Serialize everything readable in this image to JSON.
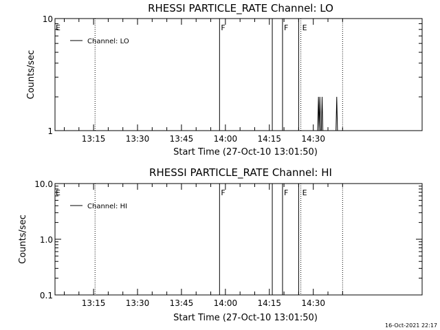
{
  "footer": {
    "timestamp": "16-Oct-2021 22:17"
  },
  "chart_data": [
    {
      "type": "line",
      "title": "RHESSI PARTICLE_RATE Channel: LO",
      "xlabel": "Start Time (27-Oct-10 13:01:50)",
      "ylabel": "Counts/sec",
      "yscale": "log",
      "ylim": [
        1,
        10
      ],
      "ytick_labels": [
        "1",
        "10"
      ],
      "xtick_labels": [
        "13:15",
        "13:30",
        "13:45",
        "14:00",
        "14:15",
        "14:30"
      ],
      "legend": {
        "label": "Channel: LO",
        "placement": "top-left"
      },
      "series": [
        {
          "name": "Channel: LO",
          "x": [
            "14:31:30",
            "14:31:45",
            "14:32:00",
            "14:32:15",
            "14:32:30",
            "14:32:45",
            "14:33:00",
            "14:33:15",
            "14:37:45",
            "14:38:00",
            "14:38:15"
          ],
          "values": [
            1,
            2,
            1,
            2,
            1,
            1,
            2,
            1,
            1,
            2,
            1
          ]
        }
      ],
      "event_lines": [
        {
          "time": "13:58:00",
          "style": "solid",
          "label": "F"
        },
        {
          "time": "14:16:00",
          "style": "solid",
          "label": ""
        },
        {
          "time": "14:19:30",
          "style": "solid",
          "label": "F"
        },
        {
          "time": "14:25:00",
          "style": "solid",
          "label": ""
        },
        {
          "time": "13:15:30",
          "style": "dotted",
          "label": ""
        },
        {
          "time": "14:25:45",
          "style": "dotted",
          "label": "E"
        },
        {
          "time": "14:40:00",
          "style": "dotted",
          "label": ""
        }
      ],
      "edge_label": "E"
    },
    {
      "type": "line",
      "title": "RHESSI PARTICLE_RATE Channel: HI",
      "xlabel": "Start Time (27-Oct-10 13:01:50)",
      "ylabel": "Counts/sec",
      "yscale": "log",
      "ylim": [
        0.1,
        10
      ],
      "ytick_labels": [
        "0.1",
        "1.0",
        "10.0"
      ],
      "xtick_labels": [
        "13:15",
        "13:30",
        "13:45",
        "14:00",
        "14:15",
        "14:30"
      ],
      "legend": {
        "label": "Channel: HI",
        "placement": "top-left"
      },
      "series": [
        {
          "name": "Channel: HI",
          "x": [],
          "values": []
        }
      ],
      "event_lines": [
        {
          "time": "13:58:00",
          "style": "solid",
          "label": "F"
        },
        {
          "time": "14:16:00",
          "style": "solid",
          "label": ""
        },
        {
          "time": "14:19:30",
          "style": "solid",
          "label": "F"
        },
        {
          "time": "14:25:00",
          "style": "solid",
          "label": ""
        },
        {
          "time": "13:15:30",
          "style": "dotted",
          "label": ""
        },
        {
          "time": "14:25:45",
          "style": "dotted",
          "label": "E"
        },
        {
          "time": "14:40:00",
          "style": "dotted",
          "label": ""
        }
      ],
      "edge_label": "E"
    }
  ]
}
